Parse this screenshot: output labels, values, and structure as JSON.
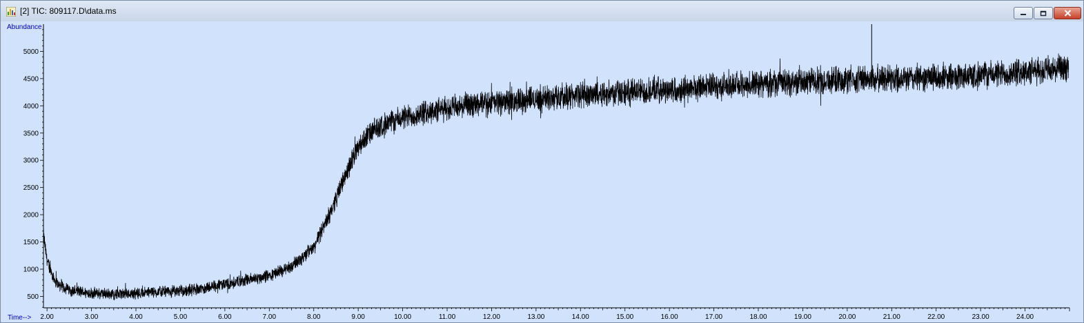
{
  "window": {
    "title": "[2] TIC: 809117.D\\data.ms",
    "icon": "chromatogram-icon",
    "controls": {
      "minimize": "minimize-icon",
      "maximize": "maximize-icon",
      "close": "close-icon"
    }
  },
  "colors": {
    "plot_background": "#d0e2fc",
    "trace": "#000000",
    "axis_label": "#0000cc"
  },
  "chart_data": {
    "type": "line",
    "title": "",
    "xlabel": "Time-->",
    "ylabel": "Abundance",
    "xlim": [
      1.92,
      25.0
    ],
    "ylim": [
      290,
      5500
    ],
    "x_ticks": [
      "2.00",
      "3.00",
      "4.00",
      "5.00",
      "6.00",
      "7.00",
      "8.00",
      "9.00",
      "10.00",
      "11.00",
      "12.00",
      "13.00",
      "14.00",
      "15.00",
      "16.00",
      "17.00",
      "18.00",
      "19.00",
      "20.00",
      "21.00",
      "22.00",
      "23.00",
      "24.00"
    ],
    "y_ticks": [
      "500",
      "1000",
      "1500",
      "2000",
      "2500",
      "3000",
      "3500",
      "4000",
      "4500",
      "5000"
    ],
    "grid": false,
    "series": [
      {
        "name": "",
        "x": [
          1.9,
          2.0,
          2.2,
          2.5,
          2.8,
          3.0,
          3.5,
          4.0,
          4.5,
          5.0,
          5.5,
          6.0,
          6.5,
          7.0,
          7.5,
          8.0,
          8.3,
          8.6,
          8.9,
          9.2,
          9.5,
          10.0,
          10.5,
          11.0,
          12.0,
          13.0,
          14.0,
          15.0,
          16.0,
          17.0,
          18.0,
          19.0,
          20.0,
          21.0,
          22.0,
          23.0,
          24.0,
          25.0
        ],
        "y": [
          1750,
          1150,
          750,
          620,
          580,
          560,
          540,
          560,
          580,
          600,
          650,
          720,
          800,
          880,
          1050,
          1400,
          1900,
          2500,
          3100,
          3450,
          3620,
          3780,
          3870,
          3950,
          4050,
          4130,
          4200,
          4250,
          4300,
          4350,
          4400,
          4450,
          4480,
          4500,
          4520,
          4560,
          4620,
          4680
        ],
        "noise_amplitude": 300
      }
    ],
    "annotations": [
      {
        "label": "spike",
        "x": 20.55,
        "y": 5500
      }
    ]
  }
}
